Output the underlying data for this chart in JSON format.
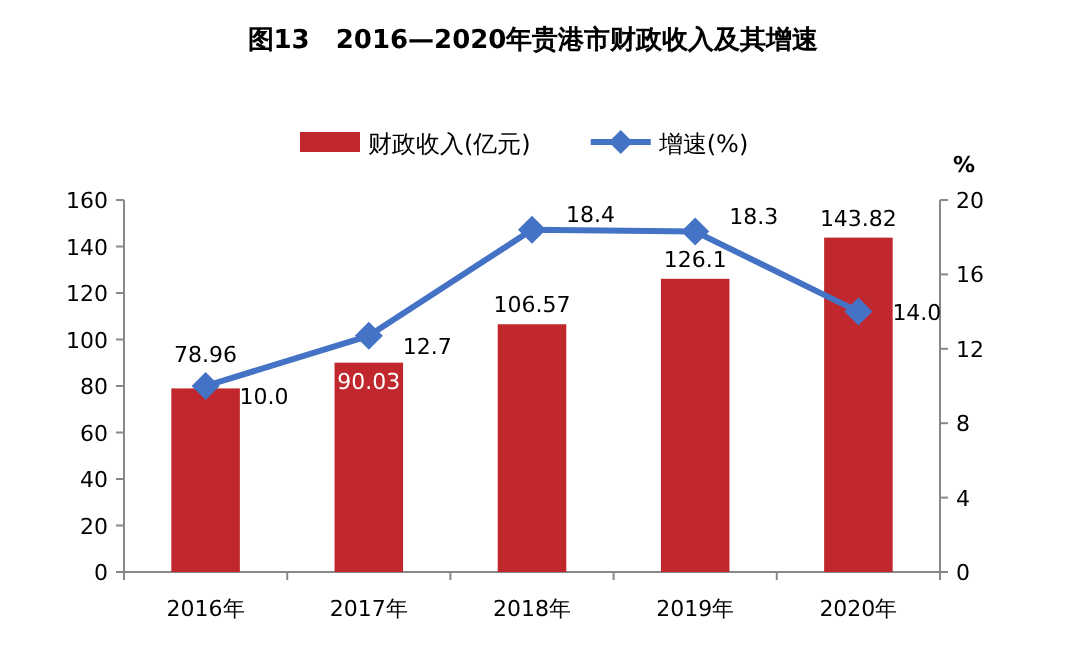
{
  "chart_data": {
    "type": "bar",
    "title": "图13　2016—2020年贵港市财政收入及其增速",
    "y2label": "%",
    "categories": [
      "2016年",
      "2017年",
      "2018年",
      "2019年",
      "2020年"
    ],
    "series": [
      {
        "name": "财政收入(亿元)",
        "color": "#c0282d",
        "values": [
          78.96,
          90.03,
          106.57,
          126.1,
          143.82
        ],
        "value_labels": [
          "78.96",
          "90.03",
          "106.57",
          "126.1",
          "143.82"
        ]
      },
      {
        "name": "增速(%)",
        "type": "line",
        "axis": "y2",
        "color": "#4472c4",
        "marker": "diamond",
        "values": [
          10.0,
          12.7,
          18.4,
          18.3,
          14.0
        ],
        "value_labels": [
          "10.0",
          "12.7",
          "18.4",
          "18.3",
          "14.0"
        ]
      }
    ],
    "ylim": [
      0,
      160
    ],
    "yticks": [
      0,
      20,
      40,
      60,
      80,
      100,
      120,
      140,
      160
    ],
    "y2lim": [
      0,
      20
    ],
    "y2ticks": [
      0,
      4,
      8,
      12,
      16,
      20
    ],
    "legend": "top",
    "grid": false
  }
}
